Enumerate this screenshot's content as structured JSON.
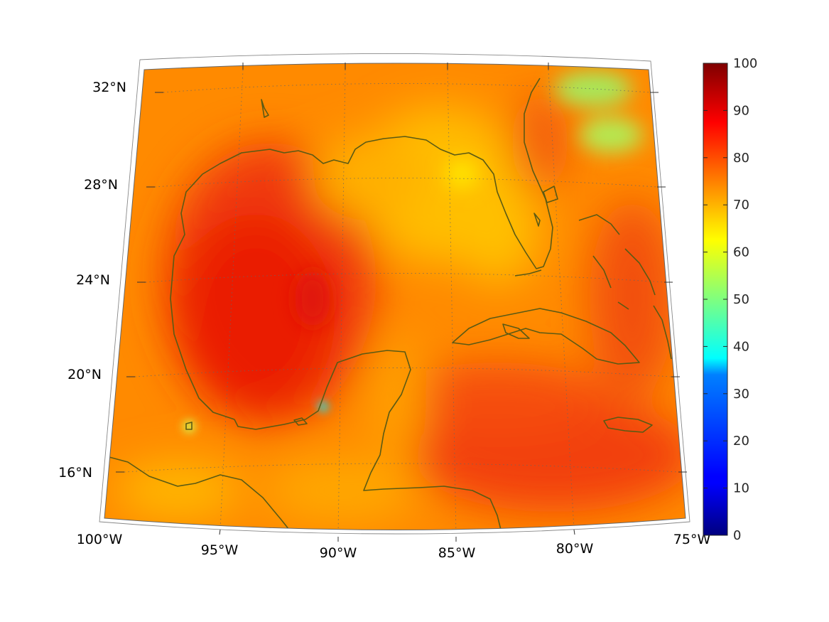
{
  "map": {
    "projection": "conic",
    "extent": {
      "lon": [
        -100,
        -75
      ],
      "lat": [
        14,
        33
      ]
    },
    "graticule": {
      "lon_step": 5,
      "lat_step": 4,
      "style": "dotted"
    },
    "lat_labels": [
      "16°N",
      "20°N",
      "24°N",
      "28°N",
      "32°N"
    ],
    "lon_labels": [
      "100°W",
      "95°W",
      "90°W",
      "85°W",
      "80°W",
      "75°W"
    ],
    "coastline_color": "#5a5a14",
    "field": "scalar field, values mostly 65–90; highest (~88) over the central Gulf of Mexico and the northwestern Caribbean; lower (~55–62) over the Florida Atlantic coast near 30–32°N"
  },
  "colorbar": {
    "colormap": "jet",
    "min": 0,
    "max": 100,
    "tick_labels": [
      "0",
      "10",
      "20",
      "30",
      "40",
      "50",
      "60",
      "70",
      "80",
      "90",
      "100"
    ]
  }
}
